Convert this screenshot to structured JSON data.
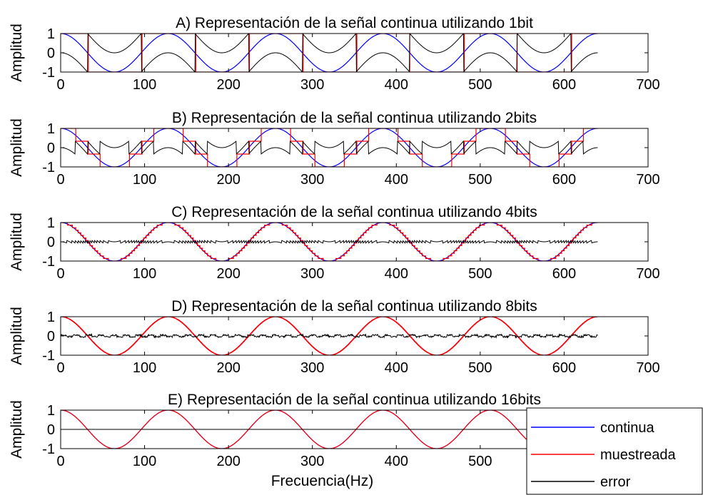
{
  "chart_data": [
    {
      "type": "line",
      "title": "A) Representación de la señal continua utilizando 1bit",
      "bits": 1,
      "ylabel": "Amplitud",
      "xlabel": "",
      "xlim": [
        0,
        700
      ],
      "ylim": [
        -1,
        1
      ],
      "xticks": [
        0,
        100,
        200,
        300,
        400,
        500,
        600,
        700
      ],
      "yticks": [
        -1,
        0,
        1
      ],
      "series": [
        {
          "key": "continua",
          "color": "#0000ff"
        },
        {
          "key": "muestreada",
          "color": "#ff0000"
        },
        {
          "key": "error",
          "color": "#000000"
        }
      ]
    },
    {
      "type": "line",
      "title": "B) Representación de la señal continua utilizando 2bits",
      "bits": 2,
      "ylabel": "Amplitud",
      "xlabel": "",
      "xlim": [
        0,
        700
      ],
      "ylim": [
        -1,
        1
      ],
      "xticks": [
        0,
        100,
        200,
        300,
        400,
        500,
        600,
        700
      ],
      "yticks": [
        -1,
        0,
        1
      ],
      "series": [
        {
          "key": "continua",
          "color": "#0000ff"
        },
        {
          "key": "muestreada",
          "color": "#ff0000"
        },
        {
          "key": "error",
          "color": "#000000"
        }
      ]
    },
    {
      "type": "line",
      "title": "C) Representación de la señal continua utilizando 4bits",
      "bits": 4,
      "ylabel": "Amplitud",
      "xlabel": "",
      "xlim": [
        0,
        700
      ],
      "ylim": [
        -1,
        1
      ],
      "xticks": [
        0,
        100,
        200,
        300,
        400,
        500,
        600,
        700
      ],
      "yticks": [
        -1,
        0,
        1
      ],
      "series": [
        {
          "key": "continua",
          "color": "#0000ff"
        },
        {
          "key": "muestreada",
          "color": "#ff0000"
        },
        {
          "key": "error",
          "color": "#000000"
        }
      ]
    },
    {
      "type": "line",
      "title": "D) Representación de la señal continua utilizando 8bits",
      "bits": 8,
      "ylabel": "Amplitud",
      "xlabel": "",
      "xlim": [
        0,
        700
      ],
      "ylim": [
        -1,
        1
      ],
      "xticks": [
        0,
        100,
        200,
        300,
        400,
        500,
        600,
        700
      ],
      "yticks": [
        -1,
        0,
        1
      ],
      "series": [
        {
          "key": "continua",
          "color": "#0000ff"
        },
        {
          "key": "muestreada",
          "color": "#ff0000"
        },
        {
          "key": "error",
          "color": "#000000"
        }
      ]
    },
    {
      "type": "line",
      "title": "E) Representación de la señal continua utilizando 16bits",
      "bits": 16,
      "ylabel": "Amplitud",
      "xlabel": "Frecuencia(Hz)",
      "xlim": [
        0,
        700
      ],
      "ylim": [
        -1,
        1
      ],
      "xticks": [
        0,
        100,
        200,
        300,
        400,
        500
      ],
      "yticks": [
        -1,
        0,
        1
      ],
      "series": [
        {
          "key": "continua",
          "color": "#0000ff"
        },
        {
          "key": "muestreada",
          "color": "#ff0000"
        },
        {
          "key": "error",
          "color": "#000000"
        }
      ]
    }
  ],
  "signal": {
    "shape": "cosine",
    "period": 128,
    "amplitude": 1,
    "x_start": 0,
    "x_end": 640
  },
  "legend": {
    "placement": "bottom-right",
    "entries": [
      {
        "label": "continua",
        "color": "#0000ff"
      },
      {
        "label": "muestreada",
        "color": "#ff0000"
      },
      {
        "label": "error",
        "color": "#000000"
      }
    ]
  }
}
